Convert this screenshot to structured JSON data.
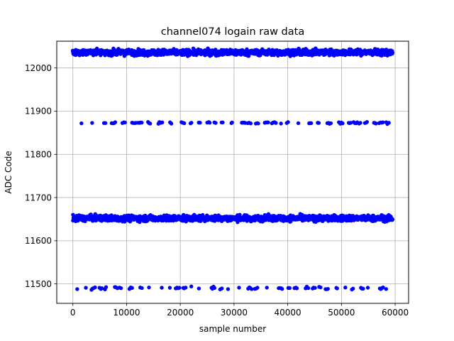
{
  "chart_data": {
    "type": "scatter",
    "title": "channel074 logain raw data",
    "xlabel": "sample number",
    "ylabel": "ADC Code",
    "xlim": [
      -3000,
      62500
    ],
    "ylim": [
      11455,
      12062
    ],
    "xticks": [
      0,
      10000,
      20000,
      30000,
      40000,
      50000,
      60000
    ],
    "yticks": [
      11500,
      11600,
      11700,
      11800,
      11900,
      12000
    ],
    "grid": true,
    "marker_color": "#0000ff",
    "series": [
      {
        "bands": [
          {
            "level": 12036,
            "spread": 6,
            "x_start": 0,
            "x_end": 59500,
            "density": "continuous"
          },
          {
            "level": 11652,
            "spread": 6,
            "x_start": 0,
            "x_end": 59500,
            "density": "continuous"
          },
          {
            "level": 11873,
            "spread": 2,
            "x_start": 1500,
            "x_end": 58900,
            "density": "sparse"
          },
          {
            "level": 11490,
            "spread": 3,
            "x_start": 700,
            "x_end": 59000,
            "density": "sparse"
          }
        ]
      }
    ]
  }
}
